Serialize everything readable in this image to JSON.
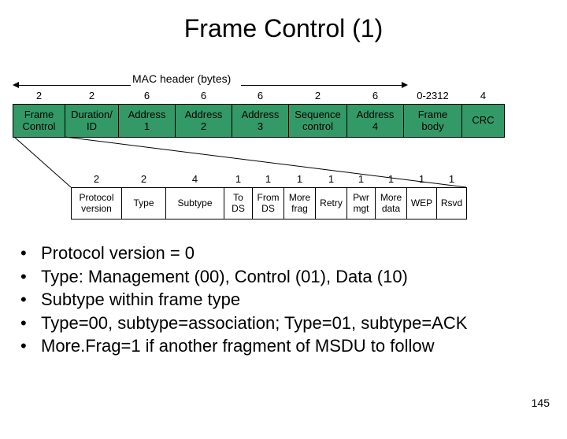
{
  "title": "Frame Control (1)",
  "mac_header_label": "MAC header (bytes)",
  "frame": {
    "sizes": [
      "2",
      "2",
      "6",
      "6",
      "6",
      "2",
      "6",
      "0-2312",
      "4"
    ],
    "fields": [
      "Frame\nControl",
      "Duration/\nID",
      "Address\n1",
      "Address\n2",
      "Address\n3",
      "Sequence\ncontrol",
      "Address\n4",
      "Frame\nbody",
      "CRC"
    ],
    "widths": [
      66,
      68,
      72,
      72,
      72,
      74,
      72,
      74,
      54
    ],
    "cell_bg": "#339966",
    "border": "#000000"
  },
  "ctrl": {
    "sizes": [
      "2",
      "2",
      "4",
      "1",
      "1",
      "1",
      "1",
      "1",
      "1",
      "1",
      "1"
    ],
    "fields": [
      "Protocol\nversion",
      "Type",
      "Subtype",
      "To\nDS",
      "From\nDS",
      "More\nfrag",
      "Retry",
      "Pwr\nmgt",
      "More\ndata",
      "WEP",
      "Rsvd"
    ],
    "widths": [
      64,
      56,
      74,
      36,
      40,
      40,
      40,
      36,
      40,
      38,
      38
    ]
  },
  "bullets": [
    "Protocol version = 0",
    "Type:  Management (00), Control (01), Data (10)",
    "Subtype within frame type",
    "Type=00, subtype=association; Type=01, subtype=ACK",
    "More.Frag=1 if another fragment of MSDU to follow"
  ],
  "page_num": "145"
}
